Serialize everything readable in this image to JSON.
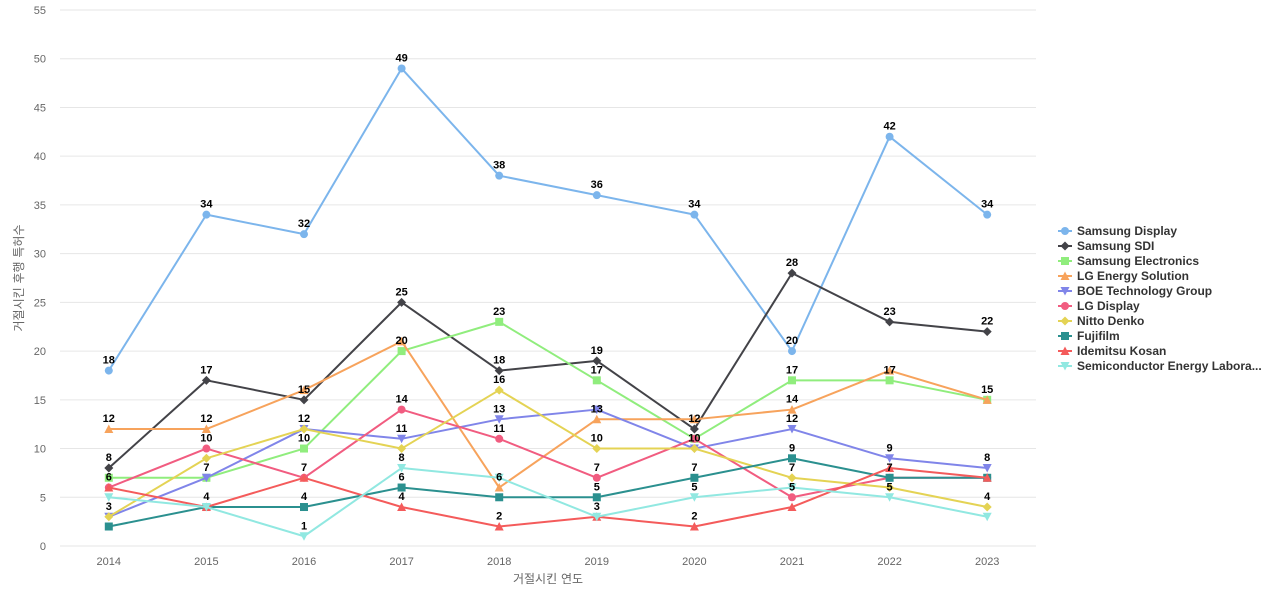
{
  "chart_data": {
    "type": "line",
    "title": "",
    "xlabel": "거절시킨 연도",
    "ylabel": "거절시킨 후행 특허수",
    "ylim": [
      0,
      55
    ],
    "yticks": [
      0,
      5,
      10,
      15,
      20,
      25,
      30,
      35,
      40,
      45,
      50,
      55
    ],
    "grid": true,
    "legend_position": "right",
    "categories": [
      "2014",
      "2015",
      "2016",
      "2017",
      "2018",
      "2019",
      "2020",
      "2021",
      "2022",
      "2023"
    ],
    "series": [
      {
        "name": "Samsung Display",
        "color": "#7cb5ec",
        "marker": "circle",
        "values": [
          18,
          34,
          32,
          49,
          38,
          36,
          34,
          20,
          42,
          34
        ]
      },
      {
        "name": "Samsung SDI",
        "color": "#434348",
        "marker": "diamond",
        "values": [
          8,
          17,
          15,
          25,
          18,
          19,
          12,
          28,
          23,
          22
        ]
      },
      {
        "name": "Samsung Electronics",
        "color": "#90ed7d",
        "marker": "square",
        "values": [
          7,
          7,
          10,
          20,
          23,
          17,
          11,
          17,
          17,
          15
        ]
      },
      {
        "name": "LG Energy Solution",
        "color": "#f7a35c",
        "marker": "triangle",
        "values": [
          12,
          12,
          16,
          21,
          6,
          13,
          13,
          14,
          18,
          15
        ]
      },
      {
        "name": "BOE Technology Group",
        "color": "#8085e9",
        "marker": "triangle-down",
        "values": [
          3,
          7,
          12,
          11,
          13,
          14,
          10,
          12,
          9,
          8
        ]
      },
      {
        "name": "LG Display",
        "color": "#f15c80",
        "marker": "circle",
        "values": [
          6,
          10,
          7,
          14,
          11,
          7,
          11,
          5,
          7,
          7
        ]
      },
      {
        "name": "Nitto Denko",
        "color": "#e4d354",
        "marker": "diamond",
        "values": [
          3,
          9,
          12,
          10,
          16,
          10,
          10,
          7,
          6,
          4
        ]
      },
      {
        "name": "Fujifilm",
        "color": "#2b908f",
        "marker": "square",
        "values": [
          2,
          4,
          4,
          6,
          5,
          5,
          7,
          9,
          7,
          7
        ]
      },
      {
        "name": "Idemitsu Kosan",
        "color": "#f45b5b",
        "marker": "triangle",
        "values": [
          6,
          4,
          7,
          4,
          2,
          3,
          2,
          4,
          8,
          7
        ]
      },
      {
        "name": "Semiconductor Energy Labora...",
        "color": "#91e8e1",
        "marker": "triangle-down",
        "values": [
          5,
          4,
          1,
          8,
          7,
          3,
          5,
          6,
          5,
          3
        ]
      }
    ],
    "data_labels": [
      {
        "category": "2014",
        "labels": [
          "18",
          "12",
          "8",
          "6",
          "3"
        ]
      },
      {
        "category": "2015",
        "labels": [
          "34",
          "17",
          "12",
          "10",
          "7",
          "4"
        ]
      },
      {
        "category": "2016",
        "labels": [
          "32",
          "15",
          "12",
          "10",
          "7",
          "4",
          "1"
        ]
      },
      {
        "category": "2017",
        "labels": [
          "49",
          "25",
          "20",
          "14",
          "11",
          "8",
          "6",
          "4"
        ]
      },
      {
        "category": "2018",
        "labels": [
          "38",
          "23",
          "18",
          "16",
          "13",
          "11",
          "6",
          "2"
        ]
      },
      {
        "category": "2019",
        "labels": [
          "36",
          "19",
          "17",
          "13",
          "10",
          "7",
          "5",
          "3"
        ]
      },
      {
        "category": "2020",
        "labels": [
          "34",
          "12",
          "10",
          "7",
          "5",
          "2"
        ]
      },
      {
        "category": "2021",
        "labels": [
          "20",
          "28",
          "17",
          "14",
          "12",
          "9",
          "7",
          "5"
        ]
      },
      {
        "category": "2022",
        "labels": [
          "42",
          "23",
          "17",
          "9",
          "7",
          "5"
        ]
      },
      {
        "category": "2023",
        "labels": [
          "34",
          "22",
          "15",
          "8",
          "4"
        ]
      }
    ]
  }
}
